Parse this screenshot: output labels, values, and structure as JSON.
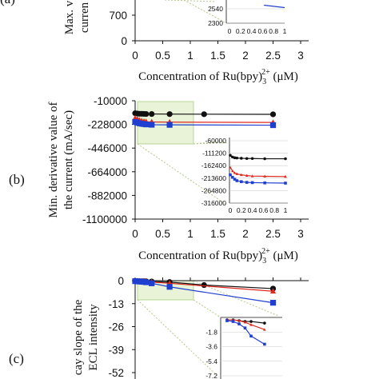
{
  "panels": {
    "a": {
      "label_text": "(a)",
      "ylabel_lines": [
        "Max. v",
        "curren"
      ]
    },
    "b": {
      "label_text": "(b)",
      "ylabel_lines": [
        "Min. derivative value of",
        "the current (mA/sec)"
      ]
    },
    "c": {
      "label_text": "(c)",
      "ylabel_lines": [
        "cay slope of the",
        "ECL intensity"
      ]
    }
  },
  "xlabel": {
    "prefix": "Concentration of Ru(bpy)",
    "sub": "3",
    "sup": "2+",
    "suffix": " (μM)"
  },
  "colors": {
    "black": "#111111",
    "red": "#e02a1f",
    "blue": "#1f3fd0",
    "inset_fill": "#e8f3d8",
    "inset_border": "#a9cf80",
    "guide": "#b5c98a"
  },
  "chart_data": [
    {
      "panel": "a",
      "type": "line",
      "x_ticks": [
        "0",
        "0.5",
        "1",
        "1.5",
        "2",
        "2.5",
        "3"
      ],
      "y_ticks": [
        "0",
        "700"
      ],
      "xlim": [
        0,
        3
      ],
      "inset": {
        "x_ticks": [
          "0",
          "0.2",
          "0.4",
          "0.6",
          "0.8",
          "1"
        ],
        "y_ticks": [
          "2300",
          "2540"
        ],
        "series": [
          {
            "color": "blue",
            "x": [
              0.625,
              1.0
            ],
            "y": [
              2600,
              2560
            ]
          }
        ]
      }
    },
    {
      "panel": "b",
      "type": "line",
      "x_ticks": [
        "0",
        "0.5",
        "1",
        "1.5",
        "2",
        "2.5",
        "3"
      ],
      "y_ticks": [
        "-10000",
        "-228000",
        "-446000",
        "-664000",
        "-882000",
        "-1100000"
      ],
      "xlim": [
        0,
        3
      ],
      "ylim": [
        -1100000,
        -10000
      ],
      "series": [
        {
          "color": "black",
          "marker": "circle",
          "x": [
            0,
            0.04,
            0.08,
            0.12,
            0.16,
            0.2,
            0.3,
            0.625,
            1.25,
            2.5
          ],
          "y": [
            -125000,
            -128000,
            -130000,
            -130000,
            -131000,
            -132000,
            -132000,
            -133000,
            -134000,
            -135000
          ]
        },
        {
          "color": "red",
          "marker": "triangle",
          "x": [
            0,
            0.04,
            0.08,
            0.12,
            0.16,
            0.2,
            0.3,
            0.625,
            2.5
          ],
          "y": [
            -170000,
            -180000,
            -190000,
            -196000,
            -200000,
            -203000,
            -205000,
            -207000,
            -210000
          ]
        },
        {
          "color": "blue",
          "marker": "square",
          "x": [
            0,
            0.04,
            0.08,
            0.12,
            0.16,
            0.2,
            0.3,
            0.625,
            2.5
          ],
          "y": [
            -205000,
            -212000,
            -218000,
            -222000,
            -225000,
            -228000,
            -231000,
            -232000,
            -235000
          ]
        }
      ],
      "inset": {
        "x_ticks": [
          "0",
          "0.2",
          "0.4",
          "0.6",
          "0.8",
          "1"
        ],
        "y_ticks": [
          "-60000",
          "-111200",
          "-162400",
          "-213600",
          "-264800",
          "-316000"
        ],
        "ylim": [
          -316000,
          -60000
        ],
        "series": [
          {
            "color": "black",
            "marker": "circle",
            "x": [
              0,
              0.04,
              0.08,
              0.12,
              0.2,
              0.3,
              0.4,
              0.625,
              1.0
            ],
            "y": [
              -120000,
              -127000,
              -130000,
              -131000,
              -132000,
              -133000,
              -133000,
              -134000,
              -134000
            ]
          },
          {
            "color": "red",
            "marker": "triangle",
            "x": [
              0,
              0.04,
              0.08,
              0.12,
              0.2,
              0.3,
              0.4,
              0.625,
              1.0
            ],
            "y": [
              -170000,
              -184000,
              -192000,
              -196000,
              -200000,
              -203000,
              -205000,
              -206000,
              -207000
            ]
          },
          {
            "color": "blue",
            "marker": "square",
            "x": [
              0,
              0.04,
              0.08,
              0.12,
              0.2,
              0.3,
              0.4,
              0.625,
              1.0
            ],
            "y": [
              -200000,
              -210000,
              -218000,
              -224000,
              -228000,
              -231000,
              -232000,
              -233000,
              -234000
            ]
          }
        ]
      }
    },
    {
      "panel": "c",
      "type": "line",
      "x_ticks": [
        "0",
        "0.5",
        "1",
        "1.5",
        "2",
        "2.5",
        "3"
      ],
      "y_ticks": [
        "0",
        "-13",
        "-26",
        "-39",
        "-52"
      ],
      "xlim": [
        0,
        3
      ],
      "ylim": [
        -52,
        0
      ],
      "series": [
        {
          "color": "black",
          "marker": "circle",
          "x": [
            0,
            0.04,
            0.08,
            0.12,
            0.16,
            0.2,
            0.3,
            0.625,
            1.25,
            2.5
          ],
          "y": [
            -0.2,
            -0.2,
            -0.3,
            -0.3,
            -0.3,
            -0.4,
            -0.5,
            -0.8,
            -2.5,
            -4.5
          ]
        },
        {
          "color": "red",
          "marker": "triangle",
          "x": [
            0,
            0.04,
            0.08,
            0.12,
            0.16,
            0.2,
            0.3,
            0.625,
            2.5
          ],
          "y": [
            -0.3,
            -0.3,
            -0.4,
            -0.4,
            -0.5,
            -0.5,
            -0.8,
            -1.5,
            -6.0
          ]
        },
        {
          "color": "blue",
          "marker": "square",
          "x": [
            0,
            0.04,
            0.08,
            0.12,
            0.16,
            0.2,
            0.3,
            0.625,
            2.5
          ],
          "y": [
            -0.3,
            -0.4,
            -0.5,
            -0.6,
            -0.7,
            -0.9,
            -1.5,
            -3.5,
            -12.5
          ]
        }
      ],
      "inset": {
        "x_ticks": [],
        "y_ticks": [
          "-1.8",
          "-3.6",
          "-5.4",
          "-7.2"
        ],
        "ylim": [
          -7.2,
          0
        ],
        "series": [
          {
            "color": "black",
            "marker": "circle",
            "x": [
              0,
              0.1,
              0.2,
              0.3,
              0.4,
              0.625
            ],
            "y": [
              -0.3,
              -0.3,
              -0.4,
              -0.5,
              -0.5,
              -0.7
            ]
          },
          {
            "color": "red",
            "marker": "triangle",
            "x": [
              0,
              0.1,
              0.2,
              0.3,
              0.4,
              0.625
            ],
            "y": [
              -0.3,
              -0.3,
              -0.4,
              -0.6,
              -0.9,
              -1.5
            ]
          },
          {
            "color": "blue",
            "marker": "square",
            "x": [
              0,
              0.1,
              0.2,
              0.3,
              0.4,
              0.625
            ],
            "y": [
              -0.4,
              -0.5,
              -0.8,
              -1.3,
              -2.3,
              -3.3
            ]
          }
        ]
      }
    }
  ]
}
